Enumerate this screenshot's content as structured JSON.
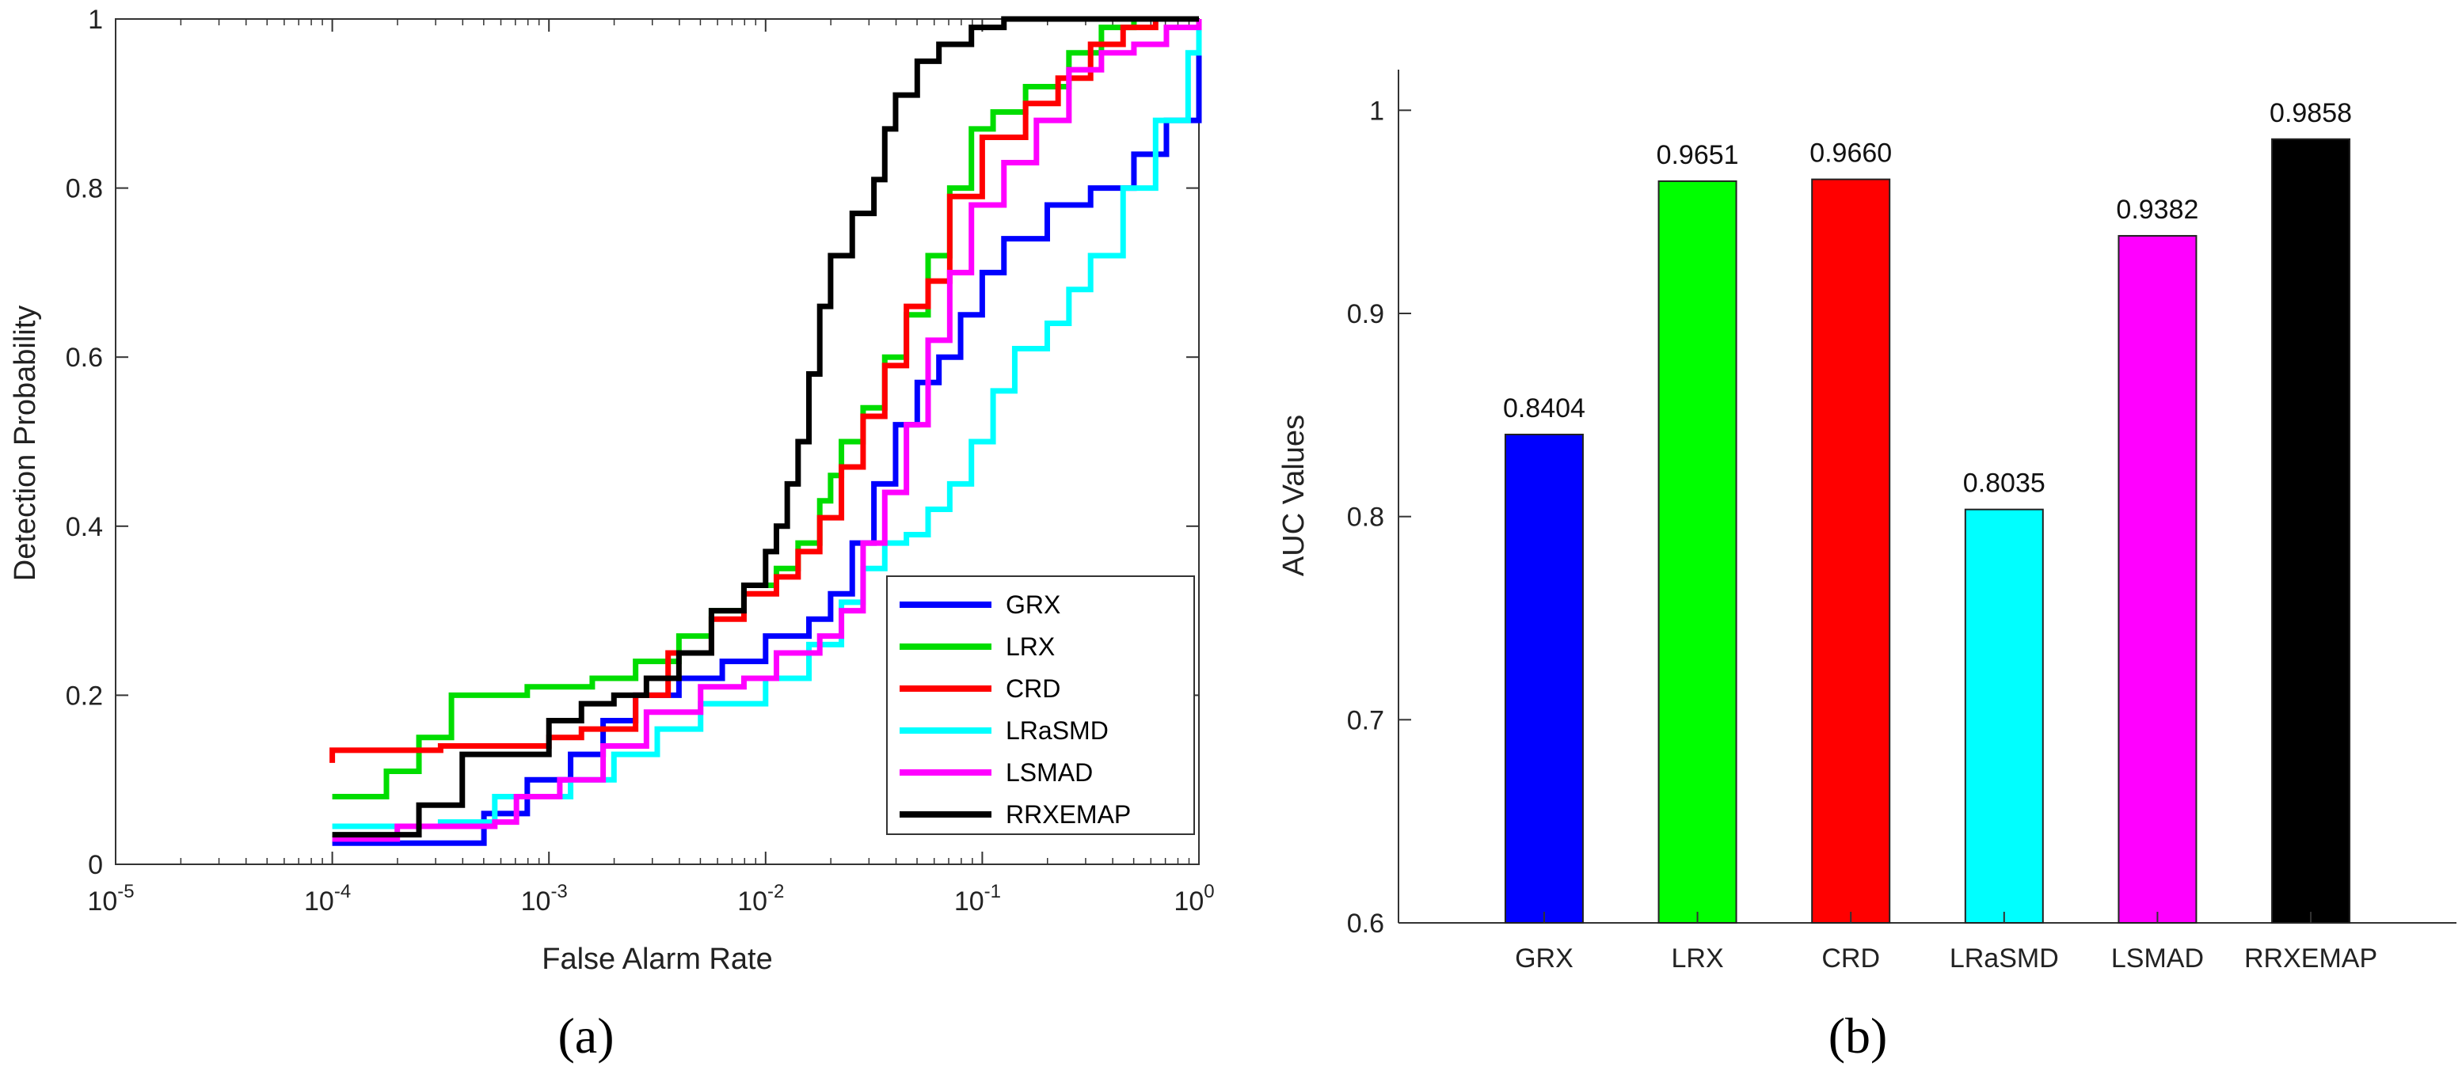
{
  "chart_data": [
    {
      "type": "line",
      "panel": "(a)",
      "xscale": "log",
      "xlabel": "False Alarm Rate",
      "ylabel": "Detection Probability",
      "xlim_log10": [
        -5,
        0
      ],
      "ylim": [
        0,
        1
      ],
      "x_ticks": [
        {
          "base": "10",
          "exp": "-5",
          "log10": -5
        },
        {
          "base": "10",
          "exp": "-4",
          "log10": -4
        },
        {
          "base": "10",
          "exp": "-3",
          "log10": -3
        },
        {
          "base": "10",
          "exp": "-2",
          "log10": -2
        },
        {
          "base": "10",
          "exp": "-1",
          "log10": -1
        },
        {
          "base": "10",
          "exp": "0",
          "log10": 0
        }
      ],
      "y_ticks": [
        "0",
        "0.2",
        "0.4",
        "0.6",
        "0.8",
        "1"
      ],
      "legend_position": "bottom-right",
      "series": [
        {
          "name": "GRX",
          "color": "#0000ff",
          "points": [
            [
              -4,
              0.025
            ],
            [
              -3.7,
              0.025
            ],
            [
              -3.3,
              0.06
            ],
            [
              -3.1,
              0.1
            ],
            [
              -2.9,
              0.13
            ],
            [
              -2.75,
              0.17
            ],
            [
              -2.6,
              0.2
            ],
            [
              -2.4,
              0.22
            ],
            [
              -2.2,
              0.24
            ],
            [
              -2.0,
              0.27
            ],
            [
              -1.8,
              0.29
            ],
            [
              -1.7,
              0.32
            ],
            [
              -1.6,
              0.38
            ],
            [
              -1.5,
              0.45
            ],
            [
              -1.4,
              0.52
            ],
            [
              -1.3,
              0.57
            ],
            [
              -1.2,
              0.6
            ],
            [
              -1.1,
              0.65
            ],
            [
              -1.0,
              0.7
            ],
            [
              -0.9,
              0.74
            ],
            [
              -0.7,
              0.78
            ],
            [
              -0.5,
              0.8
            ],
            [
              -0.3,
              0.84
            ],
            [
              -0.15,
              0.88
            ],
            [
              0,
              1
            ]
          ]
        },
        {
          "name": "LRX",
          "color": "#00dd00",
          "points": [
            [
              -4,
              0.08
            ],
            [
              -3.75,
              0.11
            ],
            [
              -3.6,
              0.15
            ],
            [
              -3.45,
              0.2
            ],
            [
              -3.1,
              0.21
            ],
            [
              -2.8,
              0.22
            ],
            [
              -2.6,
              0.24
            ],
            [
              -2.4,
              0.27
            ],
            [
              -2.25,
              0.3
            ],
            [
              -2.1,
              0.33
            ],
            [
              -1.95,
              0.35
            ],
            [
              -1.85,
              0.38
            ],
            [
              -1.75,
              0.43
            ],
            [
              -1.7,
              0.46
            ],
            [
              -1.65,
              0.5
            ],
            [
              -1.55,
              0.54
            ],
            [
              -1.45,
              0.6
            ],
            [
              -1.35,
              0.65
            ],
            [
              -1.25,
              0.72
            ],
            [
              -1.15,
              0.8
            ],
            [
              -1.05,
              0.87
            ],
            [
              -0.95,
              0.89
            ],
            [
              -0.8,
              0.92
            ],
            [
              -0.6,
              0.96
            ],
            [
              -0.45,
              0.99
            ],
            [
              -0.3,
              1
            ],
            [
              0,
              1
            ]
          ]
        },
        {
          "name": "CRD",
          "color": "#ff0000",
          "points": [
            [
              -4,
              0.12
            ],
            [
              -4,
              0.135
            ],
            [
              -3.5,
              0.14
            ],
            [
              -3.0,
              0.15
            ],
            [
              -2.85,
              0.16
            ],
            [
              -2.6,
              0.2
            ],
            [
              -2.45,
              0.25
            ],
            [
              -2.25,
              0.29
            ],
            [
              -2.1,
              0.32
            ],
            [
              -1.95,
              0.34
            ],
            [
              -1.85,
              0.37
            ],
            [
              -1.75,
              0.41
            ],
            [
              -1.65,
              0.47
            ],
            [
              -1.55,
              0.53
            ],
            [
              -1.45,
              0.59
            ],
            [
              -1.35,
              0.66
            ],
            [
              -1.25,
              0.69
            ],
            [
              -1.15,
              0.79
            ],
            [
              -1.0,
              0.86
            ],
            [
              -0.8,
              0.9
            ],
            [
              -0.65,
              0.93
            ],
            [
              -0.5,
              0.97
            ],
            [
              -0.35,
              0.99
            ],
            [
              -0.2,
              1
            ],
            [
              0,
              1
            ]
          ]
        },
        {
          "name": "LRaSMD",
          "color": "#00ffff",
          "points": [
            [
              -4,
              0.045
            ],
            [
              -3.5,
              0.05
            ],
            [
              -3.25,
              0.08
            ],
            [
              -2.9,
              0.1
            ],
            [
              -2.7,
              0.13
            ],
            [
              -2.5,
              0.16
            ],
            [
              -2.3,
              0.19
            ],
            [
              -2.0,
              0.22
            ],
            [
              -1.8,
              0.26
            ],
            [
              -1.65,
              0.31
            ],
            [
              -1.55,
              0.35
            ],
            [
              -1.45,
              0.38
            ],
            [
              -1.35,
              0.39
            ],
            [
              -1.25,
              0.42
            ],
            [
              -1.15,
              0.45
            ],
            [
              -1.05,
              0.5
            ],
            [
              -0.95,
              0.56
            ],
            [
              -0.85,
              0.61
            ],
            [
              -0.7,
              0.64
            ],
            [
              -0.6,
              0.68
            ],
            [
              -0.5,
              0.72
            ],
            [
              -0.35,
              0.8
            ],
            [
              -0.2,
              0.88
            ],
            [
              -0.05,
              0.96
            ],
            [
              0,
              1
            ]
          ]
        },
        {
          "name": "LSMAD",
          "color": "#ff00ff",
          "points": [
            [
              -4,
              0.03
            ],
            [
              -3.7,
              0.045
            ],
            [
              -3.4,
              0.045
            ],
            [
              -3.25,
              0.05
            ],
            [
              -3.15,
              0.08
            ],
            [
              -2.95,
              0.1
            ],
            [
              -2.75,
              0.14
            ],
            [
              -2.55,
              0.18
            ],
            [
              -2.3,
              0.21
            ],
            [
              -2.1,
              0.22
            ],
            [
              -1.95,
              0.25
            ],
            [
              -1.75,
              0.27
            ],
            [
              -1.65,
              0.3
            ],
            [
              -1.55,
              0.38
            ],
            [
              -1.45,
              0.44
            ],
            [
              -1.35,
              0.52
            ],
            [
              -1.25,
              0.62
            ],
            [
              -1.15,
              0.7
            ],
            [
              -1.05,
              0.78
            ],
            [
              -0.9,
              0.83
            ],
            [
              -0.75,
              0.88
            ],
            [
              -0.6,
              0.94
            ],
            [
              -0.45,
              0.96
            ],
            [
              -0.3,
              0.97
            ],
            [
              -0.15,
              0.99
            ],
            [
              0,
              1
            ]
          ]
        },
        {
          "name": "RRXEMAP",
          "color": "#000000",
          "points": [
            [
              -4,
              0.035
            ],
            [
              -3.6,
              0.035
            ],
            [
              -3.6,
              0.07
            ],
            [
              -3.4,
              0.07
            ],
            [
              -3.4,
              0.13
            ],
            [
              -3.1,
              0.13
            ],
            [
              -3.0,
              0.17
            ],
            [
              -2.85,
              0.19
            ],
            [
              -2.7,
              0.2
            ],
            [
              -2.55,
              0.22
            ],
            [
              -2.4,
              0.25
            ],
            [
              -2.25,
              0.3
            ],
            [
              -2.1,
              0.33
            ],
            [
              -2.0,
              0.37
            ],
            [
              -1.95,
              0.4
            ],
            [
              -1.9,
              0.45
            ],
            [
              -1.85,
              0.5
            ],
            [
              -1.8,
              0.58
            ],
            [
              -1.75,
              0.66
            ],
            [
              -1.7,
              0.72
            ],
            [
              -1.6,
              0.77
            ],
            [
              -1.5,
              0.81
            ],
            [
              -1.45,
              0.87
            ],
            [
              -1.4,
              0.91
            ],
            [
              -1.3,
              0.95
            ],
            [
              -1.2,
              0.97
            ],
            [
              -1.05,
              0.99
            ],
            [
              -0.9,
              1
            ],
            [
              0,
              1
            ]
          ]
        }
      ]
    },
    {
      "type": "bar",
      "panel": "(b)",
      "xlabel": "",
      "ylabel": "AUC Values",
      "ylim": [
        0.6,
        1.02
      ],
      "y_ticks": [
        "0.6",
        "0.7",
        "0.8",
        "0.9",
        "1"
      ],
      "categories": [
        "GRX",
        "LRX",
        "CRD",
        "LRaSMD",
        "LSMAD",
        "RRXEMAP"
      ],
      "values": [
        0.8404,
        0.9651,
        0.966,
        0.8035,
        0.9382,
        0.9858
      ],
      "labels": [
        "0.8404",
        "0.9651",
        "0.9660",
        "0.8035",
        "0.9382",
        "0.9858"
      ],
      "colors": [
        "#0000ff",
        "#00ff00",
        "#ff0000",
        "#00ffff",
        "#ff00ff",
        "#000000"
      ]
    }
  ]
}
